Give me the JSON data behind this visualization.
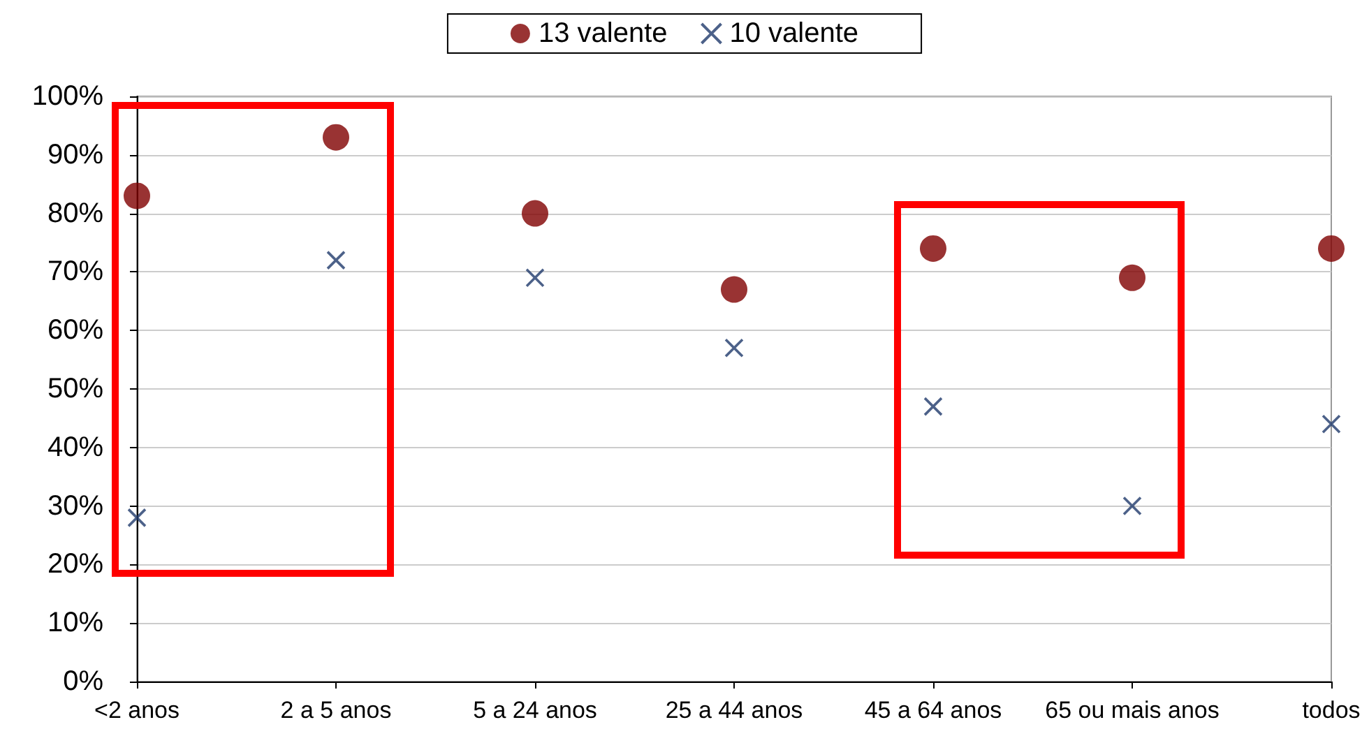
{
  "chart_data": {
    "type": "scatter",
    "categories": [
      "<2 anos",
      "2 a 5 anos",
      "5 a 24 anos",
      "25 a 44 anos",
      "45 a 64 anos",
      "65 ou mais anos",
      "todos"
    ],
    "series": [
      {
        "name": "13 valente",
        "color": "#800000",
        "marker": "circle",
        "values": [
          83,
          93,
          80,
          67,
          74,
          69,
          74
        ]
      },
      {
        "name": "10 valente",
        "color": "#1f3a6b",
        "marker": "cross",
        "values": [
          28,
          72,
          69,
          57,
          47,
          30,
          44
        ]
      }
    ],
    "ylim": [
      0,
      100
    ],
    "yticks": [
      {
        "value": 0,
        "label": "0%"
      },
      {
        "value": 10,
        "label": "10%"
      },
      {
        "value": 20,
        "label": "20%"
      },
      {
        "value": 30,
        "label": "30%"
      },
      {
        "value": 40,
        "label": "40%"
      },
      {
        "value": 50,
        "label": "50%"
      },
      {
        "value": 60,
        "label": "60%"
      },
      {
        "value": 70,
        "label": "70%"
      },
      {
        "value": 80,
        "label": "80%"
      },
      {
        "value": 90,
        "label": "90%"
      },
      {
        "value": 100,
        "label": "100%"
      }
    ],
    "grid": "y",
    "legend": "top"
  }
}
